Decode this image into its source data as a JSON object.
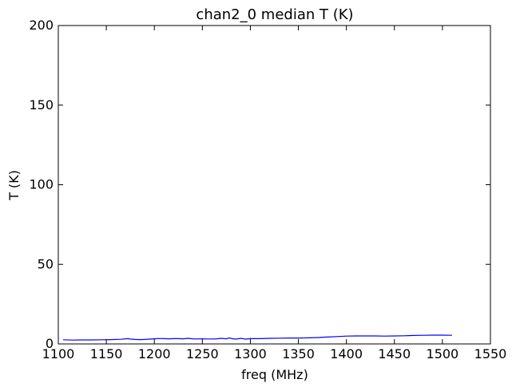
{
  "chart_data": {
    "type": "line",
    "title": "chan2_0 median T (K)",
    "xlabel": "freq (MHz)",
    "ylabel": "T (K)",
    "xlim": [
      1100,
      1550
    ],
    "ylim": [
      0,
      200
    ],
    "x_ticks": [
      1100,
      1150,
      1200,
      1250,
      1300,
      1350,
      1400,
      1450,
      1500,
      1550
    ],
    "y_ticks": [
      0,
      50,
      100,
      150,
      200
    ],
    "grid": false,
    "colors": {
      "line": "#0000ff",
      "axes": "#000000"
    },
    "series": [
      {
        "x": [
          1105,
          1115,
          1125,
          1135,
          1145,
          1155,
          1165,
          1172,
          1176,
          1180,
          1185,
          1190,
          1195,
          1200,
          1205,
          1210,
          1215,
          1220,
          1225,
          1230,
          1235,
          1240,
          1245,
          1250,
          1255,
          1260,
          1265,
          1270,
          1275,
          1278,
          1281,
          1284,
          1287,
          1290,
          1295,
          1300,
          1310,
          1320,
          1330,
          1340,
          1350,
          1360,
          1370,
          1380,
          1390,
          1400,
          1410,
          1420,
          1430,
          1440,
          1450,
          1460,
          1470,
          1480,
          1490,
          1500,
          1510
        ],
        "y": [
          2.6,
          2.4,
          2.5,
          2.5,
          2.6,
          2.7,
          2.9,
          3.3,
          3.0,
          2.8,
          2.7,
          2.8,
          3.0,
          3.2,
          3.4,
          3.3,
          3.2,
          3.3,
          3.3,
          3.2,
          3.5,
          3.2,
          3.1,
          3.2,
          3.1,
          3.1,
          3.2,
          3.5,
          3.2,
          3.8,
          3.3,
          3.0,
          3.2,
          3.5,
          3.0,
          3.3,
          3.3,
          3.5,
          3.6,
          3.7,
          3.7,
          3.8,
          4.0,
          4.3,
          4.6,
          4.9,
          5.0,
          5.0,
          5.0,
          4.9,
          5.0,
          5.1,
          5.3,
          5.4,
          5.5,
          5.5,
          5.4
        ]
      }
    ]
  }
}
